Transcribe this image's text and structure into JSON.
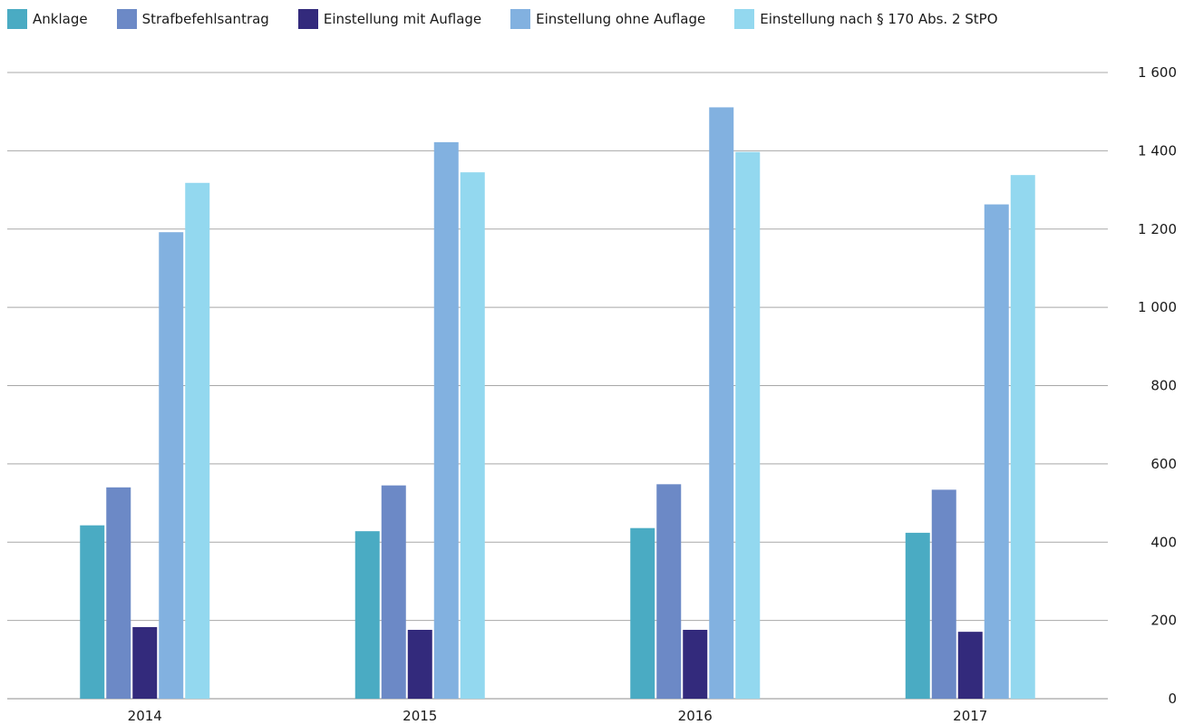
{
  "chart_data": {
    "type": "bar",
    "title": "",
    "xlabel": "",
    "ylabel": "",
    "categories": [
      "2014",
      "2015",
      "2016",
      "2017"
    ],
    "series": [
      {
        "name": "Anklage",
        "color": "#4aabc3",
        "values": [
          443,
          428,
          436,
          424
        ]
      },
      {
        "name": "Strafbefehlsantrag",
        "color": "#6c89c6",
        "values": [
          540,
          545,
          548,
          534
        ]
      },
      {
        "name": "Einstellung mit Auflage",
        "color": "#332a7c",
        "values": [
          183,
          176,
          176,
          171
        ]
      },
      {
        "name": "Einstellung ohne Auflage",
        "color": "#82b1e0",
        "values": [
          1192,
          1422,
          1511,
          1263
        ]
      },
      {
        "name": "Einstellung nach § 170 Abs. 2 StPO",
        "color": "#93d8ef",
        "values": [
          1318,
          1345,
          1397,
          1338
        ]
      }
    ],
    "ylim": [
      0,
      1600
    ],
    "yticks": [
      0,
      200,
      400,
      600,
      800,
      1000,
      1200,
      1400,
      1600
    ],
    "ytick_labels": [
      "0",
      "200",
      "400",
      "600",
      "800",
      "1 000",
      "1 200",
      "1 400",
      "1 600"
    ],
    "y_axis_side": "right",
    "grid": true,
    "legend_position": "top-left"
  }
}
